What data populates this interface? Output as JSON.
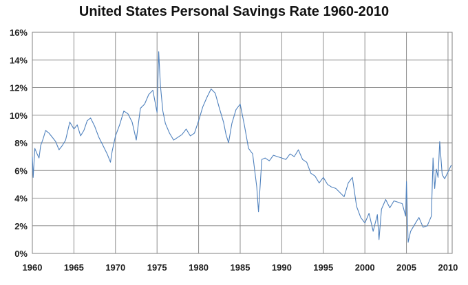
{
  "chart_data": {
    "type": "line",
    "title": "United States Personal Savings Rate 1960-2010",
    "xlabel": "",
    "ylabel": "",
    "xlim": [
      1960,
      2010.5
    ],
    "ylim": [
      0,
      16
    ],
    "grid": true,
    "legend": "none",
    "line_color": "#4f81bd",
    "x_ticks": [
      1960,
      1965,
      1970,
      1975,
      1980,
      1985,
      1990,
      1995,
      2000,
      2005,
      2010
    ],
    "x_tick_labels": [
      "1960",
      "1965",
      "1970",
      "1975",
      "1980",
      "1985",
      "1990",
      "1995",
      "2000",
      "2005",
      "2010"
    ],
    "y_ticks": [
      0,
      2,
      4,
      6,
      8,
      10,
      12,
      14,
      16
    ],
    "y_tick_labels": [
      "0%",
      "2%",
      "4%",
      "6%",
      "8%",
      "10%",
      "12%",
      "14%",
      "16%"
    ],
    "series": [
      {
        "x": [
          1960.0,
          1960.1,
          1960.3,
          1960.5,
          1960.8,
          1961.0,
          1961.3,
          1961.6,
          1962.0,
          1962.4,
          1962.8,
          1963.2,
          1963.6,
          1964.0,
          1964.5,
          1965.0,
          1965.4,
          1965.8,
          1966.2,
          1966.6,
          1967.0,
          1967.5,
          1968.0,
          1968.5,
          1969.0,
          1969.4,
          1969.6,
          1970.0,
          1970.5,
          1971.0,
          1971.5,
          1972.0,
          1972.5,
          1973.0,
          1973.5,
          1974.0,
          1974.5,
          1975.0,
          1975.2,
          1975.4,
          1975.7,
          1976.0,
          1976.5,
          1977.0,
          1977.5,
          1978.0,
          1978.5,
          1979.0,
          1979.5,
          1980.0,
          1980.5,
          1981.0,
          1981.5,
          1982.0,
          1982.5,
          1983.0,
          1983.3,
          1983.6,
          1984.0,
          1984.5,
          1985.0,
          1985.5,
          1986.0,
          1986.5,
          1987.0,
          1987.2,
          1987.6,
          1988.0,
          1988.5,
          1989.0,
          1989.5,
          1990.0,
          1990.5,
          1991.0,
          1991.5,
          1992.0,
          1992.5,
          1993.0,
          1993.5,
          1994.0,
          1994.5,
          1995.0,
          1995.5,
          1996.0,
          1996.5,
          1997.0,
          1997.5,
          1998.0,
          1998.5,
          1999.0,
          1999.5,
          2000.0,
          2000.5,
          2001.0,
          2001.5,
          2001.7,
          2002.0,
          2002.5,
          2003.0,
          2003.5,
          2004.0,
          2004.5,
          2004.9,
          2005.0,
          2005.2,
          2005.5,
          2006.0,
          2006.5,
          2007.0,
          2007.5,
          2008.0,
          2008.2,
          2008.4,
          2008.6,
          2008.8,
          2009.0,
          2009.3,
          2009.6,
          2010.0,
          2010.4
        ],
        "y": [
          7.0,
          5.5,
          7.6,
          7.3,
          6.9,
          7.8,
          8.3,
          8.9,
          8.7,
          8.4,
          8.1,
          7.5,
          7.8,
          8.2,
          9.5,
          9.0,
          9.3,
          8.5,
          8.9,
          9.6,
          9.8,
          9.2,
          8.4,
          7.8,
          7.2,
          6.6,
          7.4,
          8.5,
          9.3,
          10.3,
          10.1,
          9.5,
          8.2,
          10.5,
          10.8,
          11.5,
          11.8,
          10.2,
          14.6,
          12.2,
          10.3,
          9.4,
          8.7,
          8.2,
          8.4,
          8.6,
          9.0,
          8.5,
          8.7,
          9.6,
          10.6,
          11.3,
          11.9,
          11.6,
          10.5,
          9.5,
          8.6,
          8.0,
          9.4,
          10.4,
          10.8,
          9.3,
          7.6,
          7.2,
          4.8,
          3.0,
          6.8,
          6.9,
          6.7,
          7.1,
          7.0,
          6.9,
          6.8,
          7.2,
          7.0,
          7.5,
          6.8,
          6.6,
          5.8,
          5.6,
          5.1,
          5.5,
          5.0,
          4.8,
          4.7,
          4.4,
          4.1,
          5.1,
          5.5,
          3.4,
          2.6,
          2.2,
          2.9,
          1.6,
          2.8,
          1.0,
          3.2,
          3.9,
          3.3,
          3.8,
          3.7,
          3.6,
          2.7,
          5.2,
          0.8,
          1.6,
          2.1,
          2.6,
          1.9,
          2.0,
          2.7,
          6.9,
          4.7,
          6.1,
          5.5,
          8.1,
          5.7,
          5.4,
          5.9,
          6.4
        ]
      }
    ]
  }
}
